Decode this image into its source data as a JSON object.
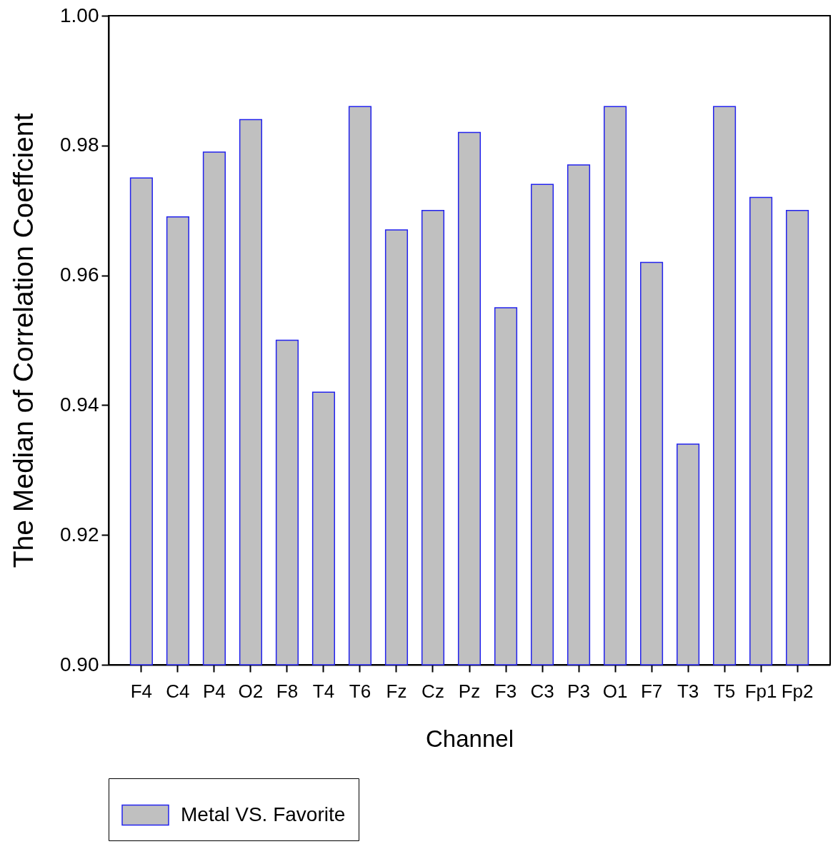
{
  "chart_data": {
    "type": "bar",
    "xlabel": "Channel",
    "ylabel": "The Median of Correlation Coeffcient",
    "categories": [
      "F4",
      "C4",
      "P4",
      "O2",
      "F8",
      "T4",
      "T6",
      "Fz",
      "Cz",
      "Pz",
      "F3",
      "C3",
      "P3",
      "O1",
      "F7",
      "T3",
      "T5",
      "Fp1",
      "Fp2"
    ],
    "series": [
      {
        "name": "Metal VS. Favorite",
        "color": "#c0c0c0",
        "values": [
          0.975,
          0.969,
          0.979,
          0.984,
          0.95,
          0.942,
          0.986,
          0.967,
          0.97,
          0.982,
          0.955,
          0.974,
          0.977,
          0.986,
          0.962,
          0.934,
          0.986,
          0.972,
          0.97
        ]
      }
    ],
    "ylim": [
      0.9,
      1.0
    ],
    "yticks": [
      {
        "value": 0.9,
        "label": "0.90"
      },
      0.92,
      0.94,
      0.96,
      0.98,
      {
        "value": 1.0,
        "label": "1.00"
      }
    ],
    "legend": "bottom"
  }
}
